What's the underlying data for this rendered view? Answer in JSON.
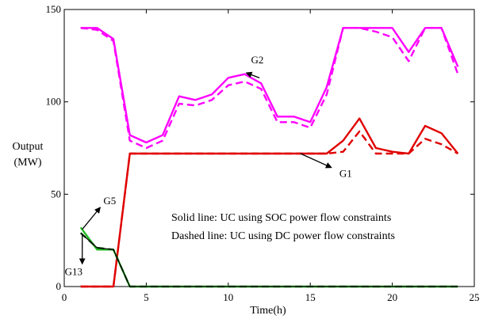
{
  "chart_data": {
    "type": "line",
    "xlabel": "Time(h)",
    "ylabel": [
      "Output",
      "(MW)"
    ],
    "xlim": [
      0,
      25
    ],
    "ylim": [
      0,
      150
    ],
    "x_ticks": [
      0,
      5,
      10,
      15,
      20,
      25
    ],
    "y_ticks": [
      0,
      50,
      100,
      150
    ],
    "grid": false,
    "x": [
      1,
      2,
      3,
      4,
      5,
      6,
      7,
      8,
      9,
      10,
      11,
      12,
      13,
      14,
      15,
      16,
      17,
      18,
      19,
      20,
      21,
      22,
      23,
      24
    ],
    "series": [
      {
        "line": "solid",
        "color": "#ff00ff",
        "values": [
          140,
          140,
          134,
          82,
          78,
          82,
          103,
          101,
          104,
          113,
          115,
          110,
          92,
          92,
          89,
          108,
          140,
          140,
          140,
          140,
          127,
          140,
          140,
          119
        ]
      },
      {
        "line": "dashed",
        "color": "#ff00ff",
        "values": [
          140,
          139,
          133,
          79,
          75,
          79,
          99,
          98,
          101,
          109,
          111,
          107,
          89,
          89,
          86,
          104,
          140,
          140,
          138,
          135,
          122,
          140,
          140,
          115
        ]
      },
      {
        "line": "solid",
        "color": "#e00000",
        "values": [
          0,
          0,
          0,
          72,
          72,
          72,
          72,
          72,
          72,
          72,
          72,
          72,
          72,
          72,
          72,
          72,
          79,
          91,
          75,
          73,
          72,
          87,
          83,
          72
        ]
      },
      {
        "line": "dashed",
        "color": "#e00000",
        "values": [
          0,
          0,
          0,
          72,
          72,
          72,
          72,
          72,
          72,
          72,
          72,
          72,
          72,
          72,
          72,
          72,
          73,
          84,
          72,
          72,
          72,
          80,
          77,
          72
        ]
      },
      {
        "line": "solid",
        "color": "#22bb22",
        "values": [
          32,
          20,
          20,
          0,
          0,
          0,
          0,
          0,
          0,
          0,
          0,
          0,
          0,
          0,
          0,
          0,
          0,
          0,
          0,
          0,
          0,
          0,
          0,
          0
        ]
      },
      {
        "line": "dashed",
        "color": "#1a6e1a",
        "values": [
          29,
          21,
          20,
          0,
          0,
          0,
          0,
          0,
          0,
          0,
          0,
          0,
          0,
          0,
          0,
          0,
          0,
          0,
          0,
          0,
          0,
          0,
          0,
          0
        ]
      },
      {
        "line": "solid",
        "color": "#000000",
        "values": [
          29,
          21,
          20,
          0,
          0,
          0,
          0,
          0,
          0,
          0,
          0,
          0,
          0,
          0,
          0,
          0,
          0,
          0,
          0,
          0,
          0,
          0,
          0,
          0
        ]
      }
    ],
    "annotations": [
      {
        "text": "G2",
        "at": [
          11,
          120
        ],
        "arrow_to": [
          11.9,
          113
        ]
      },
      {
        "text": "G1",
        "at": [
          16,
          61
        ],
        "arrow_to": [
          14.4,
          72
        ]
      },
      {
        "text": "G5",
        "at": [
          2,
          42
        ],
        "arrow_to": [
          1.1,
          31
        ]
      },
      {
        "text": "G13",
        "at": [
          1,
          8
        ],
        "arrow_to": [
          1.1,
          28
        ]
      }
    ],
    "notes": [
      "Solid line: UC using SOC power flow constraints",
      "Dashed line: UC using DC power flow constraints"
    ]
  }
}
